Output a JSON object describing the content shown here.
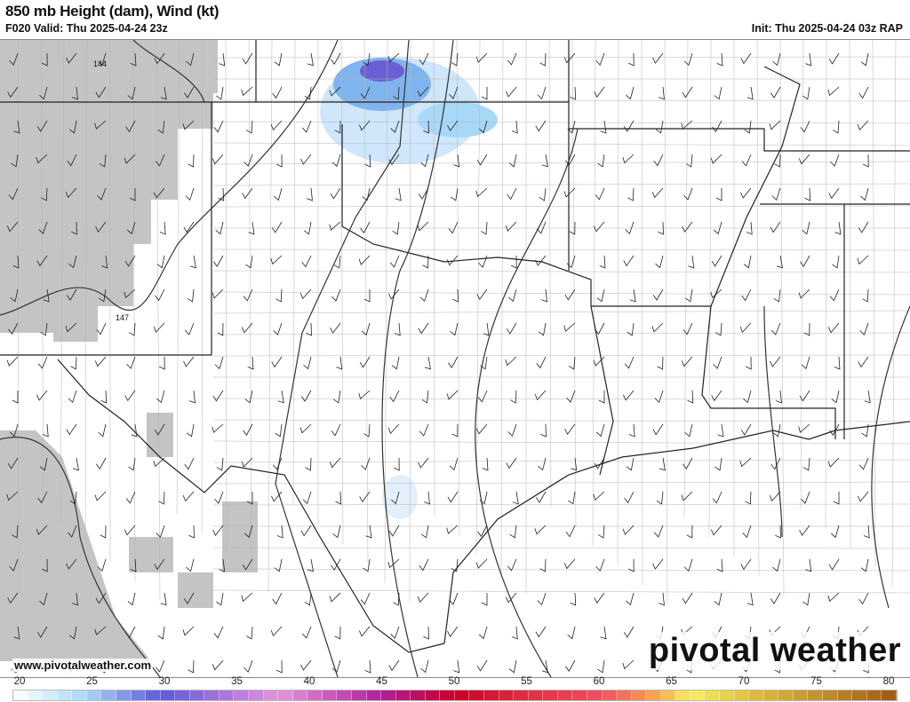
{
  "header": {
    "title": "850 mb Height (dam), Wind (kt)",
    "valid": "F020 Valid: Thu 2025-04-24 23z",
    "init": "Init: Thu 2025-04-24 03z RAP"
  },
  "map": {
    "contour_labels": [
      "144",
      "147"
    ],
    "colors": {
      "terrain_mask": "#c4c4c4",
      "borders": "#222222",
      "counties": "#9a9a9a",
      "contour": "#333333",
      "wind_shade_light": "#cfe6fb",
      "wind_shade_mid": "#7fb4ee",
      "wind_shade_max": "#6a5fd4"
    }
  },
  "footer": {
    "website": "www.pivotalweather.com",
    "logo": "pivotal weather"
  },
  "colorbar": {
    "labels": [
      "20",
      "25",
      "30",
      "35",
      "40",
      "45",
      "50",
      "55",
      "60",
      "65",
      "70",
      "75",
      "80"
    ],
    "min": 20,
    "max": 80,
    "stops": [
      [
        20,
        "#ffffff"
      ],
      [
        25,
        "#a8d8f8"
      ],
      [
        30,
        "#5e5ad6"
      ],
      [
        35,
        "#b47ae0"
      ],
      [
        38,
        "#e496dc"
      ],
      [
        45,
        "#b0209a"
      ],
      [
        50,
        "#c8002a"
      ],
      [
        55,
        "#e03040"
      ],
      [
        60,
        "#f05060"
      ],
      [
        64,
        "#f8b050"
      ],
      [
        66,
        "#f8f060"
      ],
      [
        70,
        "#e0c040"
      ],
      [
        75,
        "#c09030"
      ],
      [
        80,
        "#a05810"
      ]
    ]
  }
}
